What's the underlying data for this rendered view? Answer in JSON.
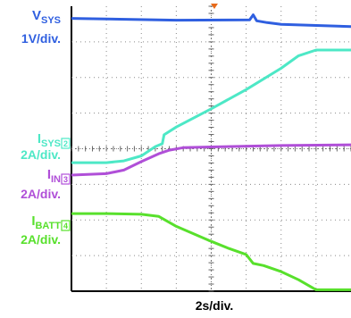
{
  "chart_data": {
    "type": "line",
    "x_divisions": 8,
    "y_divisions": 8,
    "grid": true,
    "xlabel": "2s/div.",
    "series": [
      {
        "name": "V",
        "subscript": "SYS",
        "scale": "1V/div.",
        "marker": "",
        "color": "#2f5fe0",
        "x": [
          0,
          3,
          5.1,
          5.2,
          5.3,
          5.6,
          6,
          8
        ],
        "y": [
          7.66,
          7.61,
          7.62,
          7.76,
          7.59,
          7.54,
          7.49,
          7.43
        ]
      },
      {
        "name": "I",
        "subscript": "SYS",
        "scale": "2A/div.",
        "marker": "2",
        "color": "#4de8c6",
        "x": [
          0,
          1.0,
          1.5,
          2.0,
          2.4,
          2.6,
          2.65,
          3.0,
          4.0,
          5.0,
          6.0,
          6.5,
          7.0,
          8.0
        ],
        "y": [
          3.61,
          3.61,
          3.66,
          3.8,
          4.06,
          4.14,
          4.39,
          4.61,
          5.12,
          5.66,
          6.26,
          6.61,
          6.77,
          6.77
        ]
      },
      {
        "name": "I",
        "subscript": "IN",
        "scale": "2A/div.",
        "marker": "3",
        "color": "#b04fd8",
        "x": [
          0,
          1.0,
          1.5,
          2.0,
          2.5,
          2.8,
          3.2,
          4.0,
          6.0,
          8.0
        ],
        "y": [
          3.26,
          3.3,
          3.4,
          3.64,
          3.86,
          3.96,
          4.03,
          4.05,
          4.09,
          4.11
        ]
      },
      {
        "name": "I",
        "subscript": "BATT",
        "scale": "2A/div.",
        "marker": "4",
        "color": "#58e02c",
        "x": [
          0,
          1.0,
          2.0,
          2.5,
          3.0,
          4.0,
          4.5,
          5.0,
          5.2,
          5.5,
          6.0,
          6.5,
          7.0,
          8.0
        ],
        "y": [
          2.18,
          2.18,
          2.16,
          2.1,
          1.82,
          1.4,
          1.2,
          1.03,
          0.78,
          0.72,
          0.55,
          0.32,
          0.04,
          0.04
        ]
      }
    ]
  }
}
